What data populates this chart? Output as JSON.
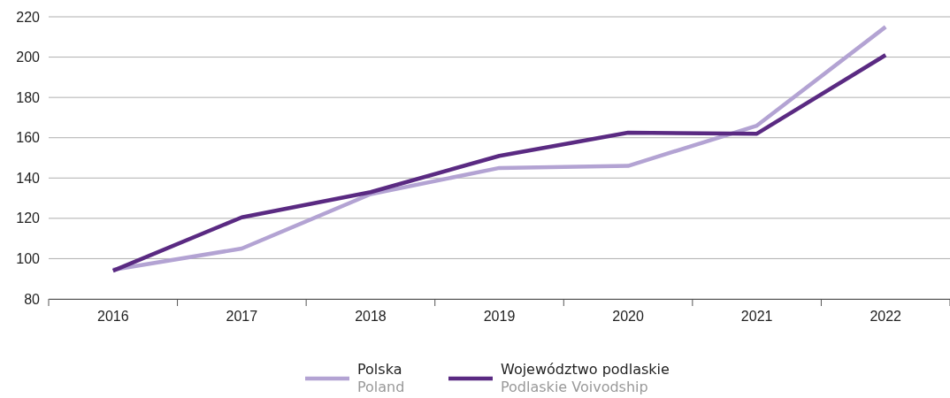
{
  "chart_data": {
    "type": "line",
    "categories": [
      "2016",
      "2017",
      "2018",
      "2019",
      "2020",
      "2021",
      "2022"
    ],
    "series": [
      {
        "name": "Polska\nPoland",
        "color": "#b3a3d3",
        "values": [
          94.5,
          105,
          132,
          145,
          146,
          166,
          215
        ]
      },
      {
        "name": "Województwo podlaskie\nPodlaskie Voivodship",
        "color": "#5a2a82",
        "values": [
          94,
          120.5,
          133,
          151,
          162.5,
          162,
          201
        ]
      }
    ],
    "ylim": [
      80,
      220
    ],
    "yticks": [
      80,
      100,
      120,
      140,
      160,
      180,
      200,
      220
    ],
    "grid": "y",
    "legend": "bottom",
    "marker": "none",
    "line_style": "solid"
  }
}
